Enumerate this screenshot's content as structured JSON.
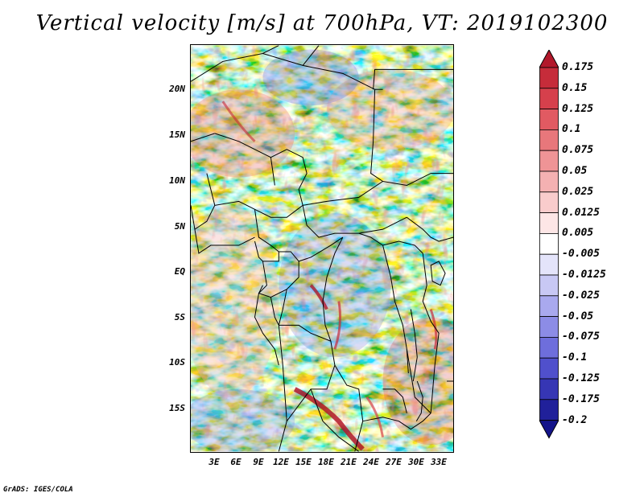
{
  "title": "Vertical velocity [m/s] at 700hPa, VT: 2019102300",
  "footer": "GrADS: IGES/COLA",
  "map": {
    "lat_labels": [
      "20N",
      "15N",
      "10N",
      "5N",
      "EQ",
      "5S",
      "10S",
      "15S"
    ],
    "lon_labels": [
      "3E",
      "6E",
      "9E",
      "12E",
      "15E",
      "18E",
      "21E",
      "24E",
      "27E",
      "30E",
      "33E"
    ]
  },
  "colorbar": {
    "labels": [
      "0.175",
      "0.15",
      "0.125",
      "0.1",
      "0.075",
      "0.05",
      "0.025",
      "0.0125",
      "0.005",
      "-0.005",
      "-0.0125",
      "-0.025",
      "-0.05",
      "-0.075",
      "-0.1",
      "-0.125",
      "-0.175",
      "-0.2"
    ],
    "colors": [
      "#b2182b",
      "#c62c3a",
      "#d6404c",
      "#e15a62",
      "#e8777b",
      "#ef9496",
      "#f4b1b2",
      "#f9cccc",
      "#fde6e6",
      "#ffffff",
      "#e4e4fa",
      "#c8c8f4",
      "#a9a9ee",
      "#8c8ce6",
      "#6e6edc",
      "#5050cc",
      "#3636b4",
      "#20209a",
      "#14148a"
    ]
  },
  "colors": {
    "positive": "#d73c3c",
    "negative": "#5a5ad8",
    "neutral": "#ffffff"
  }
}
